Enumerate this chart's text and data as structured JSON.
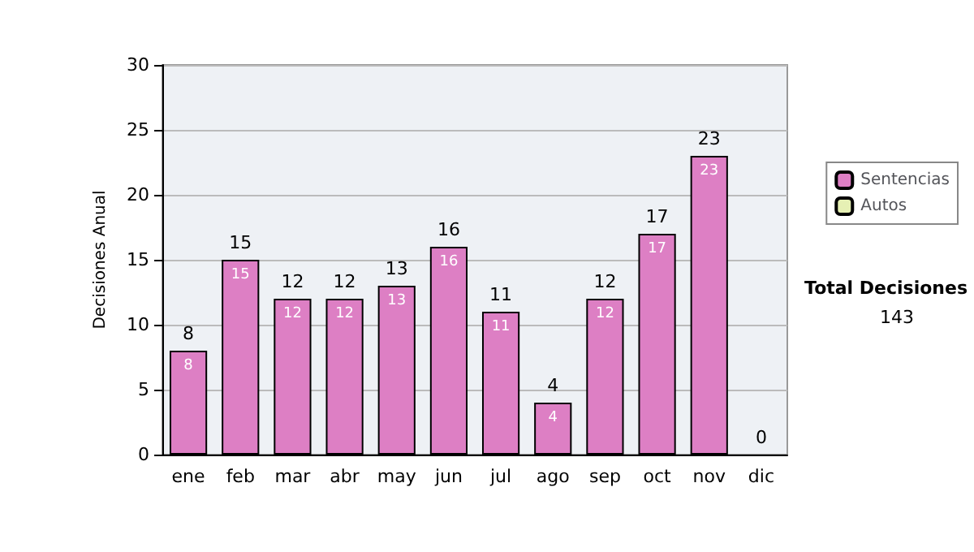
{
  "chart_data": {
    "type": "bar",
    "stacked": true,
    "ylabel": "Decisiones Anual",
    "categories": [
      "ene",
      "feb",
      "mar",
      "abr",
      "may",
      "jun",
      "jul",
      "ago",
      "sep",
      "oct",
      "nov",
      "dic"
    ],
    "series": [
      {
        "name": "Sentencias",
        "color": "#dd7fc4",
        "values": [
          8,
          15,
          12,
          12,
          13,
          16,
          11,
          4,
          12,
          17,
          23,
          0
        ],
        "value_labels": [
          "8",
          "15",
          "12",
          "12",
          "13",
          "16",
          "11",
          "4",
          "12",
          "17",
          "23",
          null
        ]
      },
      {
        "name": "Autos",
        "color": "#e6f0b4",
        "values": [
          0,
          0,
          0,
          0,
          0,
          0,
          0,
          0,
          0,
          0,
          0,
          0
        ]
      }
    ],
    "totals": [
      "8",
      "15",
      "12",
      "12",
      "13",
      "16",
      "11",
      "4",
      "12",
      "17",
      "23",
      "0"
    ],
    "ylim": [
      0,
      30
    ],
    "yticks": [
      0,
      5,
      10,
      15,
      20,
      25,
      30
    ],
    "grid": "y",
    "legend": "right",
    "annotations": [
      "Total Decisiones",
      "143"
    ]
  }
}
